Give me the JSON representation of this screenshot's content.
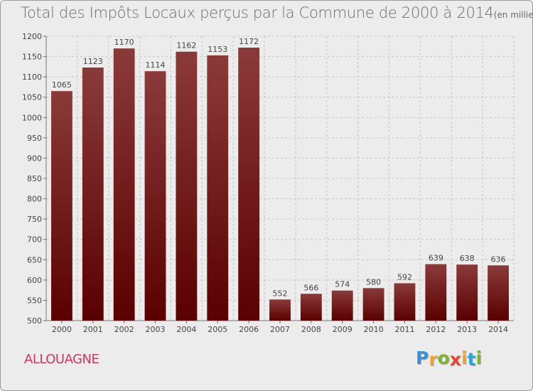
{
  "title": "Total des Impôts Locaux perçus par la Commune de 2000 à 2014",
  "unit": "(en milliers d'€)",
  "commune": "ALLOUAGNE",
  "logo": {
    "letters": [
      "P",
      "r",
      "o",
      "x",
      "i",
      "t",
      "i"
    ],
    "colors": [
      "#3a8fd6",
      "#f2a12a",
      "#7ab829",
      "#e4472f",
      "#f2a12a",
      "#2aa6d6",
      "#7ab829"
    ]
  },
  "chart_data": {
    "type": "bar",
    "categories": [
      "2000",
      "2001",
      "2002",
      "2003",
      "2004",
      "2005",
      "2006",
      "2007",
      "2008",
      "2009",
      "2010",
      "2011",
      "2012",
      "2013",
      "2014"
    ],
    "values": [
      1065,
      1123,
      1170,
      1114,
      1162,
      1153,
      1172,
      552,
      566,
      574,
      580,
      592,
      639,
      638,
      636
    ],
    "ylim": [
      500,
      1200
    ],
    "yticks": [
      500,
      550,
      600,
      650,
      700,
      750,
      800,
      850,
      900,
      950,
      1000,
      1050,
      1100,
      1150,
      1200
    ],
    "grid": true,
    "bar_color_top": "#8b3a3a",
    "bar_color_bottom": "#5a0000"
  }
}
